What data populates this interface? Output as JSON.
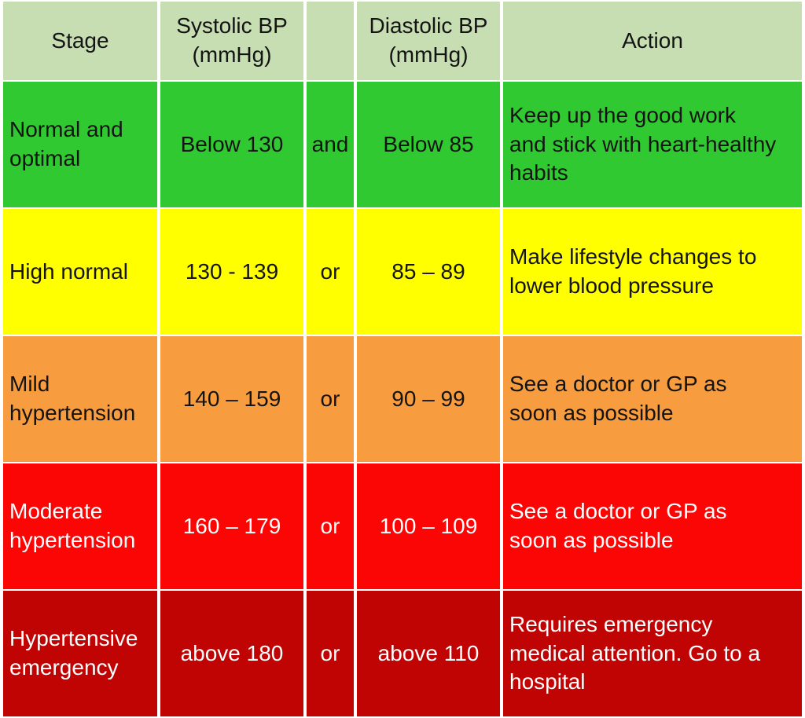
{
  "colors": {
    "header_bg": "#c7ddb2",
    "row_normal_bg": "#30c931",
    "row_high_normal_bg": "#ffff00",
    "row_mild_bg": "#f89c40",
    "row_moderate_bg": "#fb0505",
    "row_emergency_bg": "#c00404",
    "dark_text": "#141414",
    "light_text": "#ffffff",
    "grid_gap": "#ffffff"
  },
  "chart_data": {
    "type": "table",
    "header": {
      "stage": "Stage",
      "systolic": "Systolic BP\n(mmHg)",
      "conjunction": "",
      "diastolic": "Diastolic BP\n(mmHg)",
      "action": "Action"
    },
    "rows": [
      {
        "stage": "Normal and optimal",
        "systolic": "Below 130",
        "conjunction": "and",
        "diastolic": "Below 85",
        "action": "Keep up the good work and stick with heart-healthy habits",
        "bg": "#30c931",
        "text": "#141414"
      },
      {
        "stage": "High normal",
        "systolic": "130 - 139",
        "conjunction": "or",
        "diastolic": "85 – 89",
        "action": "Make lifestyle changes to lower blood pressure",
        "bg": "#ffff00",
        "text": "#141414"
      },
      {
        "stage": "Mild hypertension",
        "systolic": "140 – 159",
        "conjunction": "or",
        "diastolic": "90 – 99",
        "action": "See a doctor or GP as soon as possible",
        "bg": "#f89c40",
        "text": "#141414"
      },
      {
        "stage": "Moderate hypertension",
        "systolic": "160 – 179",
        "conjunction": "or",
        "diastolic": "100 – 109",
        "action": "See a doctor or GP as soon as possible",
        "bg": "#fb0505",
        "text": "#ffffff"
      },
      {
        "stage": "Hypertensive emergency",
        "systolic": "above 180",
        "conjunction": "or",
        "diastolic": "above 110",
        "action": "Requires emergency medical attention. Go to a hospital",
        "bg": "#c00404",
        "text": "#ffffff"
      }
    ]
  }
}
